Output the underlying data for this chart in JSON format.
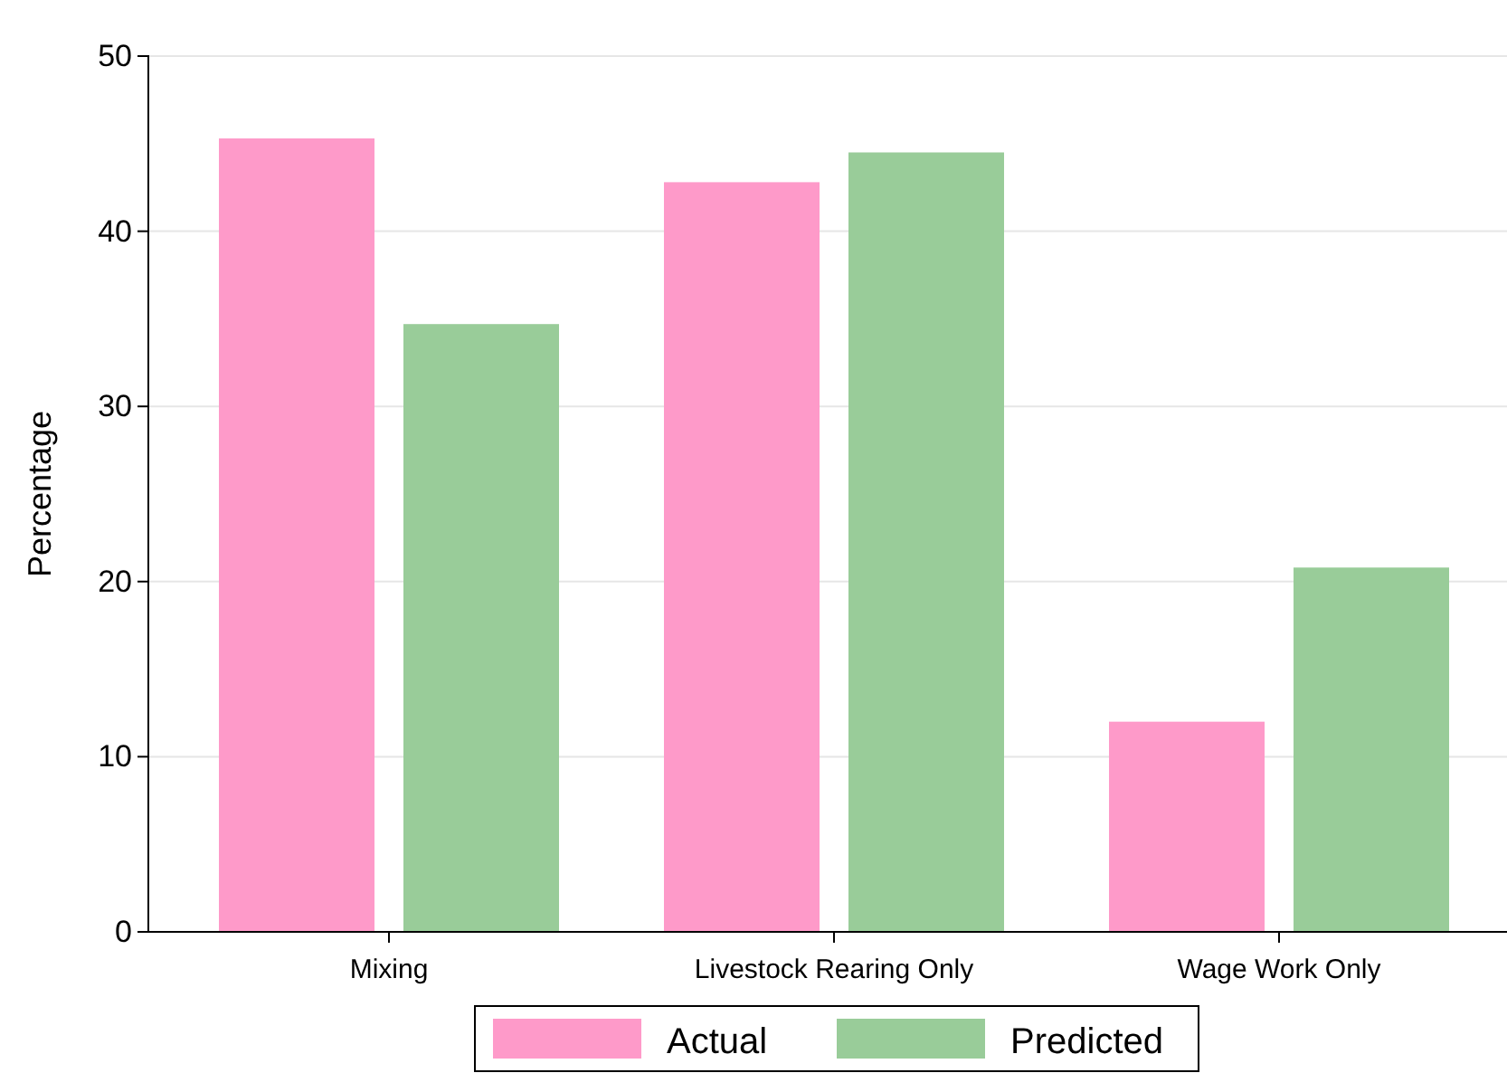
{
  "chart_data": {
    "type": "bar",
    "ylabel": "Percentage",
    "categories": [
      "Mixing",
      "Livestock Rearing Only",
      "Wage Work Only"
    ],
    "series": [
      {
        "name": "Actual",
        "color": "#fe9ac9",
        "values": [
          45.3,
          42.8,
          12.0
        ]
      },
      {
        "name": "Predicted",
        "color": "#99cc99",
        "values": [
          34.7,
          44.5,
          20.8
        ]
      }
    ],
    "ylim": [
      0,
      50
    ],
    "yticks": [
      0,
      10,
      20,
      30,
      40,
      50
    ],
    "grid": "y",
    "legend": "bottom"
  }
}
